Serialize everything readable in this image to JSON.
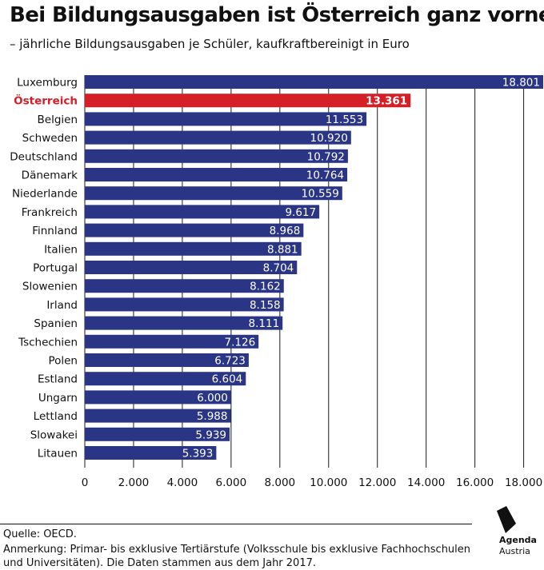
{
  "header": {
    "title": "Bei Bildungsausgaben ist Österreich ganz vorne",
    "subtitle": "– jährliche Bildungsausgaben je Schüler, kaufkraftbereinigt in Euro"
  },
  "chart_data": {
    "type": "bar",
    "orientation": "horizontal",
    "title": "Bei Bildungsausgaben ist Österreich ganz vorne",
    "subtitle": "– jährliche Bildungsausgaben je Schüler, kaufkraftbereinigt in Euro",
    "categories": [
      "Luxemburg",
      "Österreich",
      "Belgien",
      "Schweden",
      "Deutschland",
      "Dänemark",
      "Niederlande",
      "Frankreich",
      "Finnland",
      "Italien",
      "Portugal",
      "Slowenien",
      "Irland",
      "Spanien",
      "Tschechien",
      "Polen",
      "Estland",
      "Ungarn",
      "Lettland",
      "Slowakei",
      "Litauen"
    ],
    "values": [
      18801,
      13361,
      11553,
      10920,
      10792,
      10764,
      10559,
      9617,
      8968,
      8881,
      8704,
      8162,
      8158,
      8111,
      7126,
      6723,
      6604,
      6000,
      5988,
      5939,
      5393
    ],
    "value_labels": [
      "18.801",
      "13.361",
      "11.553",
      "10.920",
      "10.792",
      "10.764",
      "10.559",
      "9.617",
      "8.968",
      "8.881",
      "8.704",
      "8.162",
      "8.158",
      "8.111",
      "7.126",
      "6.723",
      "6.604",
      "6.000",
      "5.988",
      "5.939",
      "5.393"
    ],
    "highlight": "Österreich",
    "xticks": [
      0,
      2000,
      4000,
      6000,
      8000,
      10000,
      12000,
      14000,
      16000,
      18000
    ],
    "xtick_labels": [
      "0",
      "2.000",
      "4.000",
      "6.000",
      "8.000",
      "10.000",
      "12.000",
      "14.000",
      "16.000",
      "18.000"
    ],
    "xlim": [
      0,
      18801
    ],
    "grid": true,
    "colors": {
      "bar": "#2a3585",
      "highlight": "#d41f26",
      "grid": "#1a1a1a"
    }
  },
  "footer": {
    "source": "Quelle: OECD.",
    "note": "Anmerkung: Primar- bis exklusive Tertiärstufe (Volksschule bis exklusive Fachhochschulen und Universitäten). Die Daten stammen aus dem Jahr 2017.",
    "logo_line1": "Agenda",
    "logo_line2": "Austria"
  }
}
